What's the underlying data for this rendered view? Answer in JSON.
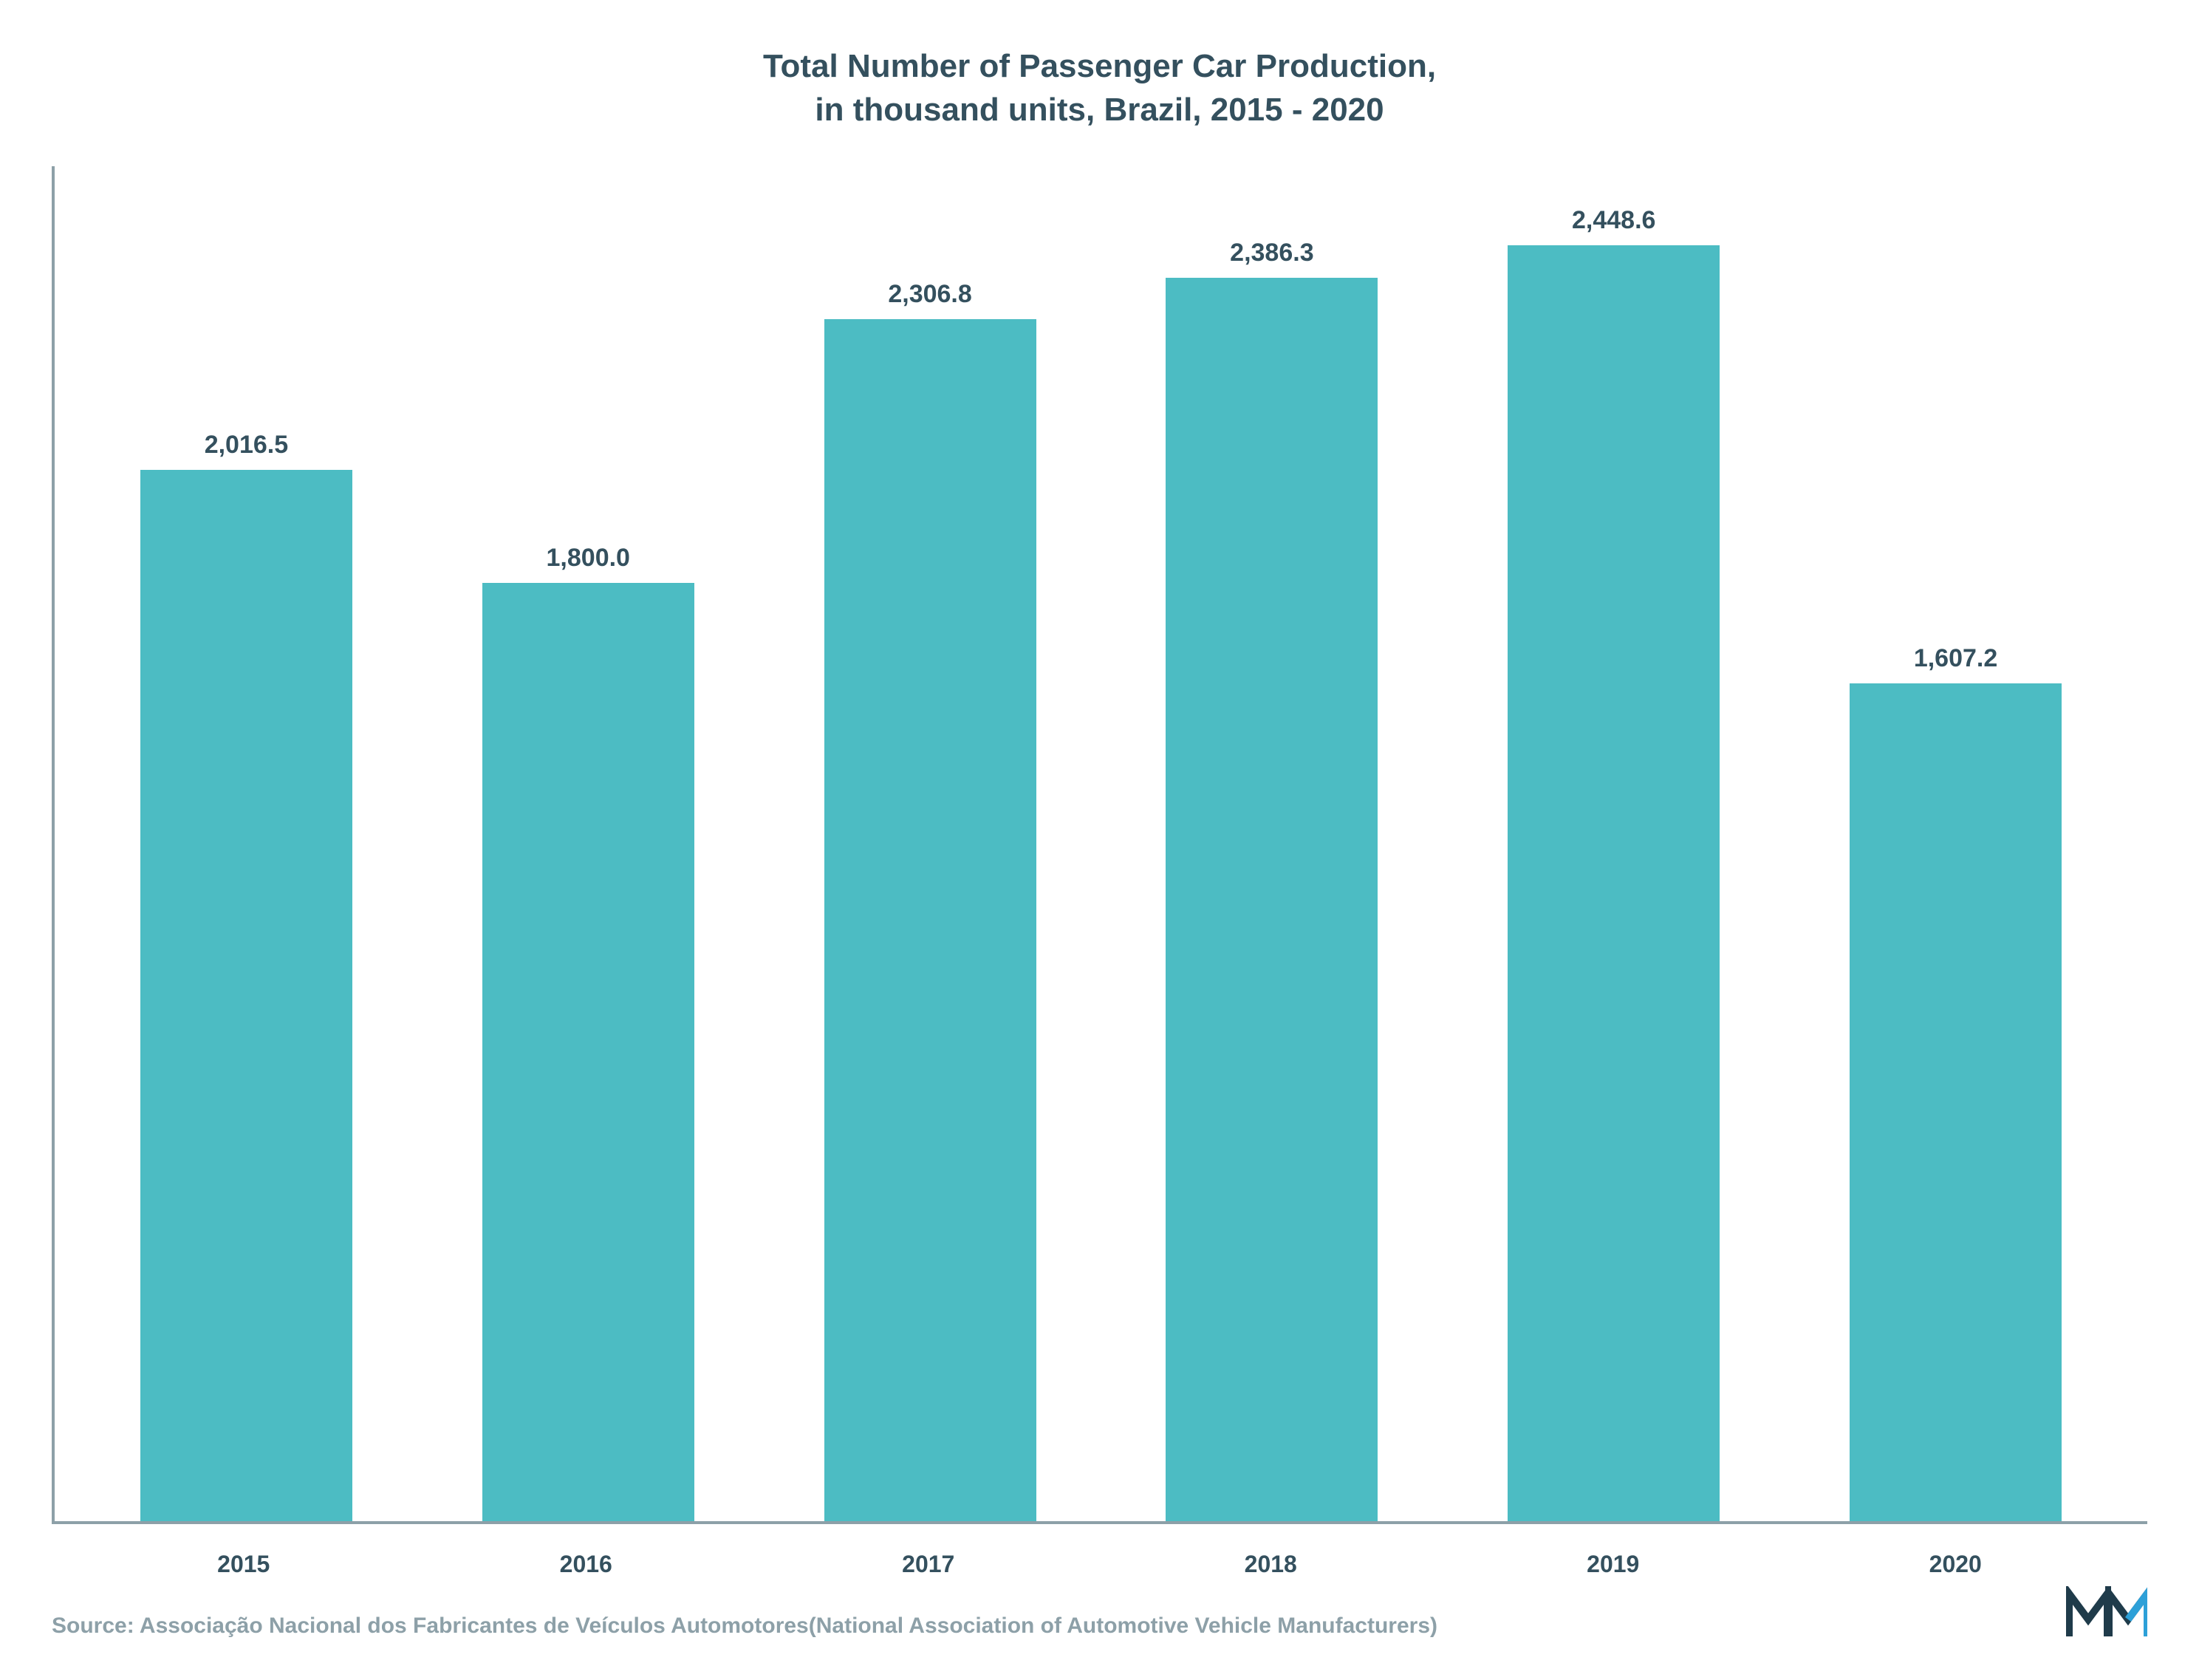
{
  "chart": {
    "type": "bar",
    "title_line1": "Total Number of Passenger Car Production,",
    "title_line2": "in thousand units, Brazil, 2015 - 2020",
    "title_fontsize": 44,
    "title_color": "#34505e",
    "categories": [
      "2015",
      "2016",
      "2017",
      "2018",
      "2019",
      "2020"
    ],
    "values": [
      2016.5,
      1800.0,
      2306.8,
      2386.3,
      2448.6,
      1607.2
    ],
    "value_labels": [
      "2,016.5",
      "1,800.0",
      "2,306.8",
      "2,386.3",
      "2,448.6",
      "1,607.2"
    ],
    "bar_color": "#4cbcc3",
    "value_label_fontsize": 34,
    "value_label_color": "#34505e",
    "xaxis_label_fontsize": 32,
    "xaxis_label_color": "#34505e",
    "axis_line_color": "#8da0a8",
    "ylim_max": 2600,
    "background_color": "#ffffff",
    "bar_width_ratio": 0.62
  },
  "source": {
    "text": "Source: Associação Nacional dos Fabricantes de Veículos Automotores(National Association of Automotive Vehicle Manufacturers)",
    "fontsize": 30,
    "color": "#8da0a8"
  },
  "logo": {
    "name": "mordor-intelligence-logo",
    "primary_color": "#1f3b4a",
    "accent_color": "#2da0d8",
    "width": 110,
    "height": 72
  }
}
